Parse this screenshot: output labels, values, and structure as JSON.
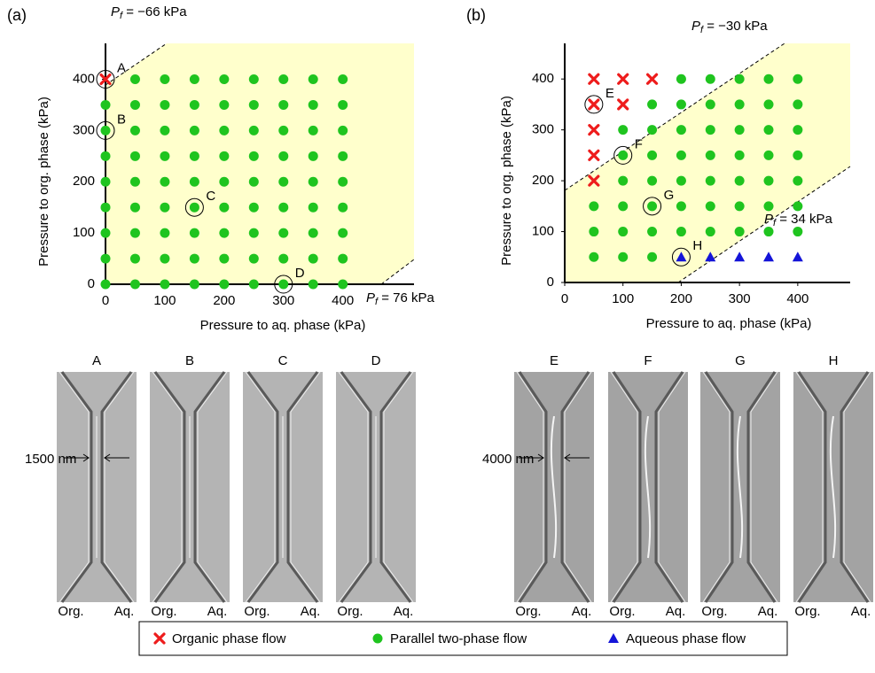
{
  "chart_data": [
    {
      "type": "scatter",
      "panel_label": "(a)",
      "x_label": "Pressure to aq. phase (kPa)",
      "y_label": "Pressure to org. phase (kPa)",
      "xlim": [
        0,
        520
      ],
      "ylim": [
        0,
        470
      ],
      "xticks": [
        0,
        100,
        200,
        300,
        400
      ],
      "yticks": [
        0,
        100,
        200,
        300,
        400
      ],
      "series": [
        {
          "color": "#ee1c1c",
          "marker": "x",
          "x": [
            0
          ],
          "values": [
            400
          ]
        },
        {
          "color": "#1fc41f",
          "marker": "circle",
          "x": [
            0,
            0,
            0,
            0,
            0,
            0,
            0,
            0,
            50,
            50,
            50,
            50,
            50,
            50,
            50,
            50,
            50,
            100,
            100,
            100,
            100,
            100,
            100,
            100,
            100,
            100,
            150,
            150,
            150,
            150,
            150,
            150,
            150,
            150,
            150,
            200,
            200,
            200,
            200,
            200,
            200,
            200,
            200,
            200,
            250,
            250,
            250,
            250,
            250,
            250,
            250,
            250,
            250,
            300,
            300,
            300,
            300,
            300,
            300,
            300,
            300,
            300,
            350,
            350,
            350,
            350,
            350,
            350,
            350,
            350,
            350,
            400,
            400,
            400,
            400,
            400,
            400,
            400,
            400,
            400
          ],
          "values": [
            0,
            50,
            100,
            150,
            200,
            250,
            300,
            350,
            0,
            50,
            100,
            150,
            200,
            250,
            300,
            350,
            400,
            0,
            50,
            100,
            150,
            200,
            250,
            300,
            350,
            400,
            0,
            50,
            100,
            150,
            200,
            250,
            300,
            350,
            400,
            0,
            50,
            100,
            150,
            200,
            250,
            300,
            350,
            400,
            0,
            50,
            100,
            150,
            200,
            250,
            300,
            350,
            400,
            0,
            50,
            100,
            150,
            200,
            250,
            300,
            350,
            400,
            0,
            50,
            100,
            150,
            200,
            250,
            300,
            350,
            400,
            0,
            50,
            100,
            150,
            200,
            250,
            300,
            350,
            400
          ]
        }
      ],
      "point_labels": [
        {
          "text": "A",
          "x": 0,
          "y": 400
        },
        {
          "text": "B",
          "x": 0,
          "y": 300
        },
        {
          "text": "C",
          "x": 150,
          "y": 150
        },
        {
          "text": "D",
          "x": 300,
          "y": 0
        }
      ],
      "boundaries": [
        {
          "symbol": "P",
          "subscript": "f",
          "text": " = −66 kPa"
        },
        {
          "symbol": "P",
          "subscript": "f",
          "text": " = 76 kPa"
        }
      ]
    },
    {
      "type": "scatter",
      "panel_label": "(b)",
      "x_label": "Pressure to aq. phase (kPa)",
      "y_label": "Pressure to org. phase (kPa)",
      "xlim": [
        0,
        490
      ],
      "ylim": [
        0,
        470
      ],
      "xticks": [
        0,
        100,
        200,
        300,
        400
      ],
      "yticks": [
        0,
        100,
        200,
        300,
        400
      ],
      "series": [
        {
          "name": "Organic phase flow",
          "color": "#ee1c1c",
          "marker": "x",
          "x": [
            50,
            100,
            150,
            50,
            100,
            50,
            50,
            50
          ],
          "values": [
            400,
            400,
            400,
            350,
            350,
            300,
            250,
            200
          ]
        },
        {
          "name": "Parallel two-phase flow",
          "color": "#1fc41f",
          "marker": "circle",
          "x": [
            200,
            250,
            300,
            350,
            400,
            150,
            200,
            250,
            300,
            350,
            400,
            100,
            150,
            200,
            250,
            300,
            350,
            400,
            100,
            150,
            200,
            250,
            300,
            350,
            400,
            100,
            150,
            200,
            250,
            300,
            350,
            400,
            50,
            100,
            150,
            200,
            250,
            300,
            350,
            400,
            50,
            100,
            150,
            200,
            250,
            300,
            350,
            400,
            50,
            100,
            150
          ],
          "values": [
            400,
            400,
            400,
            400,
            400,
            350,
            350,
            350,
            350,
            350,
            350,
            300,
            300,
            300,
            300,
            300,
            300,
            300,
            250,
            250,
            250,
            250,
            250,
            250,
            250,
            200,
            200,
            200,
            200,
            200,
            200,
            200,
            150,
            150,
            150,
            150,
            150,
            150,
            150,
            150,
            100,
            100,
            100,
            100,
            100,
            100,
            100,
            100,
            50,
            50,
            50
          ]
        },
        {
          "name": "Aqueous phase flow",
          "color": "#1414d8",
          "marker": "triangle",
          "x": [
            200,
            250,
            300,
            350,
            400
          ],
          "values": [
            50,
            50,
            50,
            50,
            50
          ]
        }
      ],
      "point_labels": [
        {
          "text": "E",
          "x": 50,
          "y": 350
        },
        {
          "text": "F",
          "x": 100,
          "y": 250
        },
        {
          "text": "G",
          "x": 150,
          "y": 150
        },
        {
          "text": "H",
          "x": 200,
          "y": 50
        }
      ],
      "boundaries": [
        {
          "symbol": "P",
          "subscript": "f",
          "text": " = −30 kPa"
        },
        {
          "symbol": "P",
          "subscript": "f",
          "text": " = 34 kPa"
        }
      ]
    }
  ],
  "micrographs": [
    {
      "label": "A",
      "left": "Org.",
      "right": "Aq.",
      "scale": "1500 nm"
    },
    {
      "label": "B",
      "left": "Org.",
      "right": "Aq."
    },
    {
      "label": "C",
      "left": "Org.",
      "right": "Aq."
    },
    {
      "label": "D",
      "left": "Org.",
      "right": "Aq."
    },
    {
      "label": "E",
      "left": "Org.",
      "right": "Aq.",
      "scale": "4000 nm"
    },
    {
      "label": "F",
      "left": "Org.",
      "right": "Aq."
    },
    {
      "label": "G",
      "left": "Org.",
      "right": "Aq."
    },
    {
      "label": "H",
      "left": "Org.",
      "right": "Aq."
    }
  ]
}
